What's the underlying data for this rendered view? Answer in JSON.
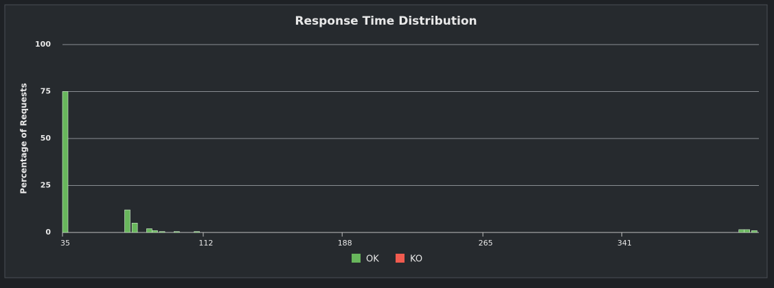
{
  "chart_data": {
    "type": "bar",
    "title": "Response Time Distribution",
    "y_label": "Percentage of Requests",
    "x": [
      35,
      69,
      73,
      81,
      84,
      88,
      96,
      107,
      405,
      408,
      412
    ],
    "series": [
      {
        "name": "OK",
        "color": "#68b65c",
        "values": [
          75,
          12,
          5,
          2,
          1,
          0.5,
          0.5,
          0.5,
          1.5,
          1.5,
          1
        ]
      },
      {
        "name": "KO",
        "color": "#f15b4f",
        "values": [
          0,
          0,
          0,
          0,
          0,
          0,
          0,
          0,
          0,
          0,
          0
        ]
      }
    ],
    "xlim": [
      35,
      416
    ],
    "xticks": [
      35,
      112,
      188,
      265,
      341
    ],
    "ylim": [
      0,
      100
    ],
    "yticks": [
      0,
      25,
      50,
      75,
      100
    ],
    "grid": true
  }
}
